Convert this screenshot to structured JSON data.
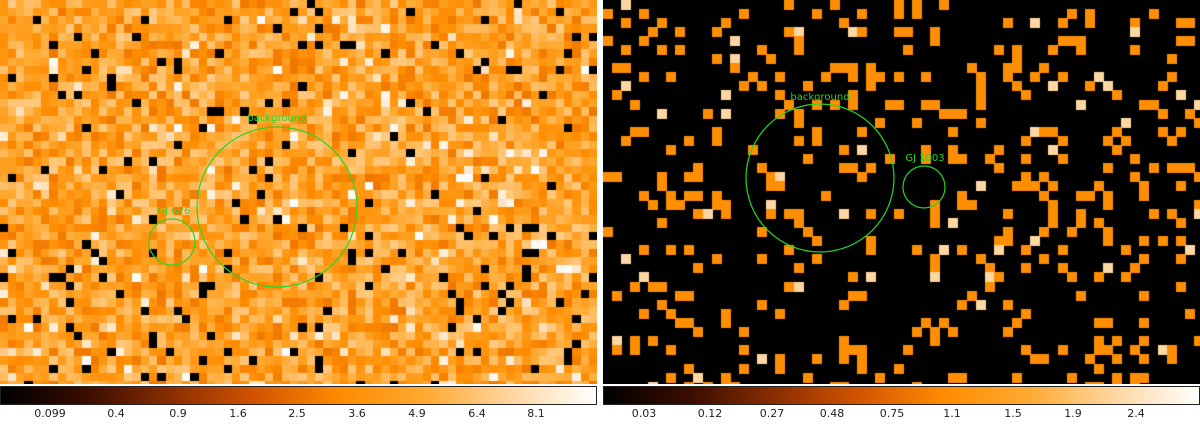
{
  "left_panel": {
    "regions": [
      {
        "label": "background",
        "color": "#26d626"
      },
      {
        "label": "GJ 676",
        "color": "#26d626"
      }
    ],
    "colorbar": {
      "ticks": [
        "0.099",
        "0.4",
        "0.9",
        "1.6",
        "2.5",
        "3.6",
        "4.9",
        "6.4",
        "8.1"
      ]
    }
  },
  "right_panel": {
    "regions": [
      {
        "label": "background",
        "color": "#26d626"
      },
      {
        "label": "GJ 1003",
        "color": "#26d626"
      }
    ],
    "colorbar": {
      "ticks": [
        "0.03",
        "0.12",
        "0.27",
        "0.48",
        "0.75",
        "1.1",
        "1.5",
        "1.9",
        "2.4"
      ]
    }
  },
  "colors": {
    "colormap": [
      "#000000",
      "#3a0d00",
      "#8a2e00",
      "#d35400",
      "#ff8c00",
      "#ffaa33",
      "#ffd6a0",
      "#ffffff"
    ],
    "region_stroke": "#26d626"
  }
}
